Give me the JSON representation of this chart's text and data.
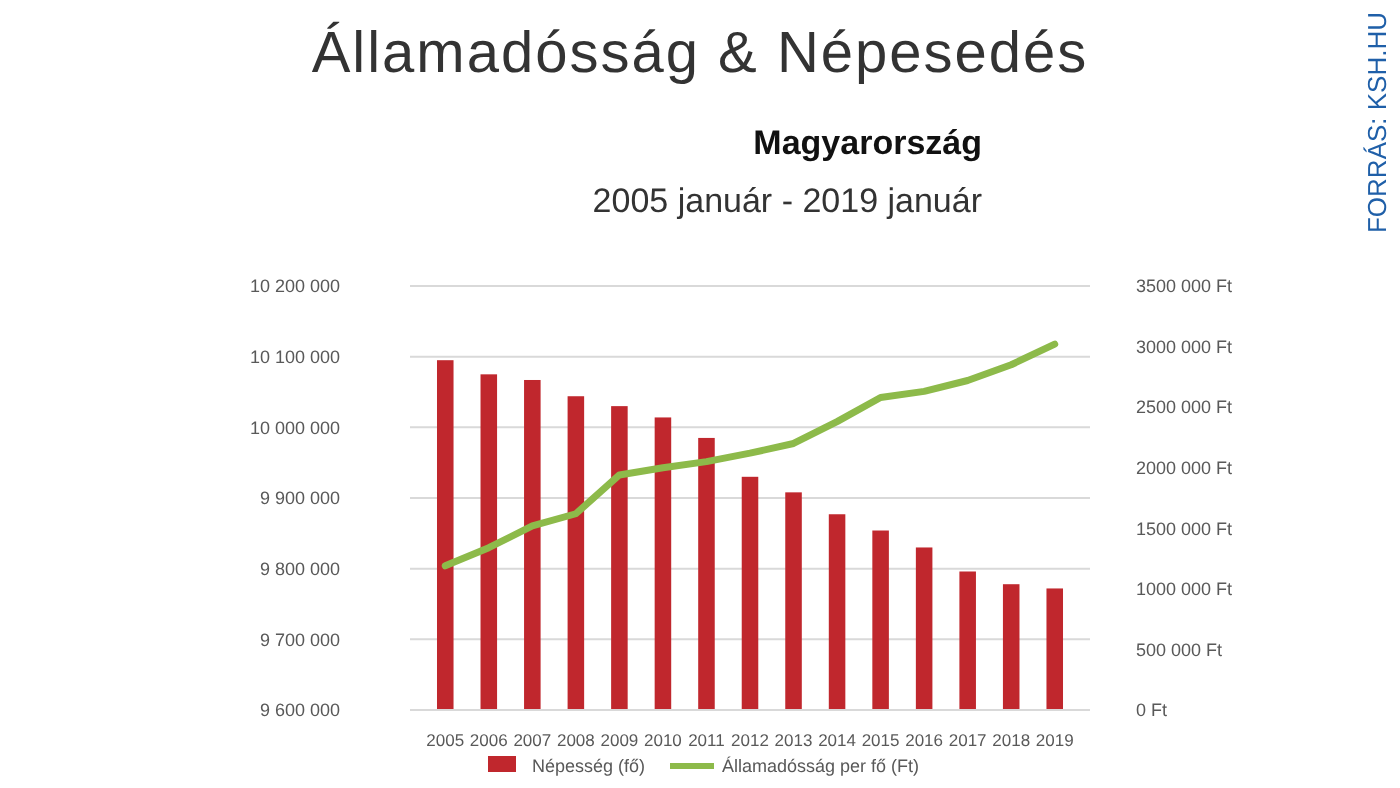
{
  "chart_data": {
    "type": "bar",
    "title": "Államadósság & Népesedés",
    "subtitle": "Magyarország",
    "annotations": [
      "2005 január - 2019 január",
      "FORRÁS: KSH.HU"
    ],
    "categories": [
      "2005",
      "2006",
      "2007",
      "2008",
      "2009",
      "2010",
      "2011",
      "2012",
      "2013",
      "2014",
      "2015",
      "2016",
      "2017",
      "2018",
      "2019"
    ],
    "series": [
      {
        "name": "Népesség (fő)",
        "color": "#c0272d",
        "values": [
          10095000,
          10075000,
          10067000,
          10044000,
          10030000,
          10014000,
          9985000,
          9930000,
          9908000,
          9877000,
          9854000,
          9830000,
          9796000,
          9778000,
          9772000
        ]
      },
      {
        "name": "Államadósság per fő (Ft)",
        "type": "line",
        "axis": "y2",
        "color": "#8dba4a",
        "values": [
          1190000,
          1340000,
          1520000,
          1620000,
          1940000,
          2000000,
          2050000,
          2120000,
          2200000,
          2380000,
          2580000,
          2630000,
          2720000,
          2850000,
          3020000
        ]
      }
    ],
    "ylim": [
      9600000,
      10200000
    ],
    "yticks": [
      {
        "value": 9600000,
        "label": "9 600 000"
      },
      {
        "value": 9700000,
        "label": "9 700 000"
      },
      {
        "value": 9800000,
        "label": "9 800 000"
      },
      {
        "value": 9900000,
        "label": "9 900 000"
      },
      {
        "value": 10000000,
        "label": "10 000 000"
      },
      {
        "value": 10100000,
        "label": "10 100 000"
      },
      {
        "value": 10200000,
        "label": "10 200 000"
      }
    ],
    "y2lim": [
      0,
      3500000
    ],
    "y2ticks": [
      {
        "value": 0,
        "label": "0 Ft"
      },
      {
        "value": 500000,
        "label": "500 000 Ft"
      },
      {
        "value": 1000000,
        "label": "1000 000 Ft"
      },
      {
        "value": 1500000,
        "label": "1500 000 Ft"
      },
      {
        "value": 2000000,
        "label": "2000 000 Ft"
      },
      {
        "value": 2500000,
        "label": "2500 000 Ft"
      },
      {
        "value": 3000000,
        "label": "3000 000 Ft"
      },
      {
        "value": 3500000,
        "label": "3500 000 Ft"
      }
    ],
    "grid": "y",
    "legend": "bottom",
    "line_style": "solid"
  }
}
